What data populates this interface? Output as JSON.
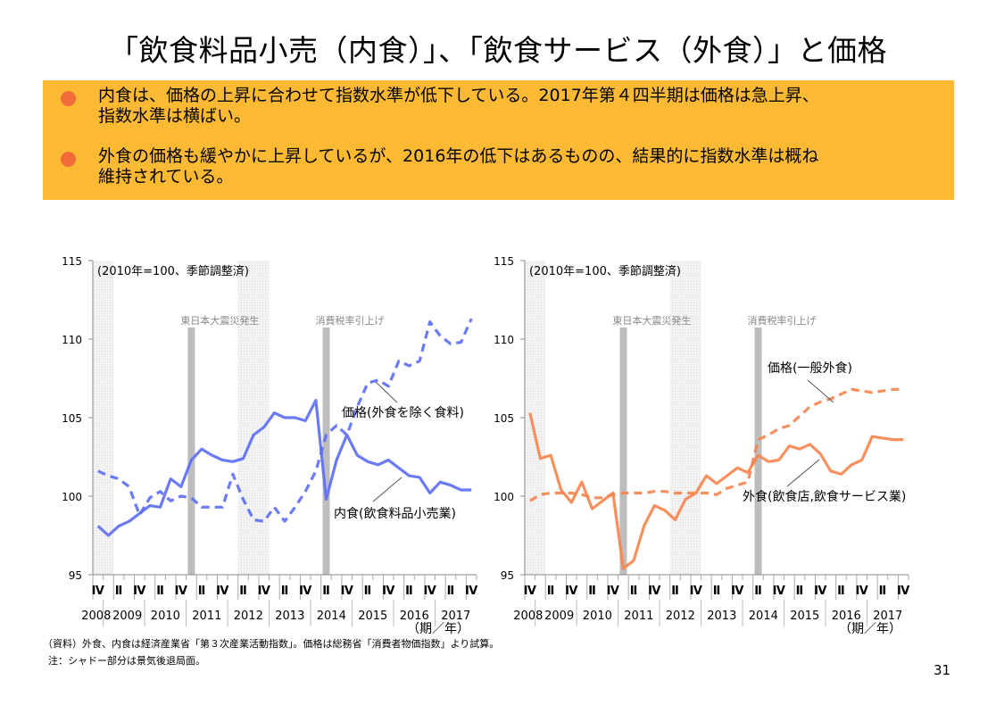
{
  "title": "「飲食料品小売（内食）」、「飲食サービス（外食）」と価格",
  "summary": {
    "bullets": [
      {
        "line1": "内食は、価格の上昇に合わせて指数水準が低下している。2017年第４四半期は価格は急上昇、",
        "line2": "指数水準は横ばい。"
      },
      {
        "line1": "外食の価格も緩やかに上昇しているが、2016年の低下はあるものの、結果的に指数水準は概ね",
        "line2": "維持されている。"
      }
    ]
  },
  "colors": {
    "summary_bg": "#FBB934",
    "bullet": "#F26B3A",
    "blue": "#5B6CF5",
    "orange": "#F7844C",
    "event_bar": "#BDBDBD",
    "shade": "#EDEDED"
  },
  "notes": {
    "source": "（資料）外食、内食は経済産業省「第３次産業活動指数」。価格は総務省「消費者物価指数」より試算。",
    "note": "注：シャドー部分は景気後退局面。"
  },
  "page_number": "31",
  "chart_data": [
    {
      "type": "line",
      "note_label": "(2010年=100、季節調整済)",
      "xlabel": "（期／年）",
      "ylim": [
        95,
        115
      ],
      "yticks": [
        95,
        100,
        105,
        110,
        115
      ],
      "x_quarter_labels": [
        "Ⅳ",
        "Ⅱ",
        "Ⅳ",
        "Ⅱ",
        "Ⅳ",
        "Ⅱ",
        "Ⅳ",
        "Ⅱ",
        "Ⅳ",
        "Ⅱ",
        "Ⅳ",
        "Ⅱ",
        "Ⅳ",
        "Ⅱ",
        "Ⅳ",
        "Ⅱ",
        "Ⅳ",
        "Ⅱ",
        "Ⅳ"
      ],
      "x_year_labels": [
        "2008",
        "2009",
        "2010",
        "2011",
        "2012",
        "2013",
        "2014",
        "2015",
        "2016",
        "2017"
      ],
      "x_start": "2008Q4",
      "x_end": "2017Q4",
      "recession_shading": [
        [
          "2008Q4",
          "2009Q1"
        ],
        [
          "2012Q2",
          "2012Q4"
        ]
      ],
      "events": [
        {
          "quarter": "2011Q1",
          "label": "東日本大震災発生"
        },
        {
          "quarter": "2014Q2",
          "label": "消費税率引上げ"
        }
      ],
      "series": [
        {
          "name": "内食(飲食料品小売業)",
          "style": "solid",
          "color": "#5B6CF5",
          "values": [
            98.1,
            97.5,
            98.1,
            98.4,
            98.9,
            99.4,
            99.3,
            101.1,
            100.6,
            102.3,
            103.0,
            102.6,
            102.3,
            102.2,
            102.4,
            103.9,
            104.4,
            105.3,
            105.0,
            105.0,
            104.8,
            106.1,
            99.8,
            102.3,
            103.9,
            102.6,
            102.2,
            102.0,
            102.3,
            101.8,
            101.3,
            101.2,
            100.2,
            100.9,
            100.7,
            100.4,
            100.4
          ]
        },
        {
          "name": "価格(外食を除く食料)",
          "style": "dashed",
          "color": "#5B6CF5",
          "values": [
            101.6,
            101.3,
            101.1,
            100.6,
            98.8,
            99.9,
            100.3,
            99.7,
            100.0,
            99.9,
            99.3,
            99.3,
            99.3,
            101.4,
            99.8,
            98.5,
            98.4,
            99.3,
            98.4,
            99.3,
            100.3,
            101.6,
            103.9,
            104.5,
            103.9,
            105.7,
            107.2,
            107.4,
            107.0,
            108.6,
            108.3,
            108.6,
            111.1,
            110.2,
            109.7,
            109.8,
            111.3
          ]
        }
      ]
    },
    {
      "type": "line",
      "note_label": "(2010年=100、季節調整済)",
      "xlabel": "（期／年）",
      "ylim": [
        95,
        115
      ],
      "yticks": [
        95,
        100,
        105,
        110,
        115
      ],
      "x_quarter_labels": [
        "Ⅳ",
        "Ⅱ",
        "Ⅳ",
        "Ⅱ",
        "Ⅳ",
        "Ⅱ",
        "Ⅳ",
        "Ⅱ",
        "Ⅳ",
        "Ⅱ",
        "Ⅳ",
        "Ⅱ",
        "Ⅳ",
        "Ⅱ",
        "Ⅳ",
        "Ⅱ",
        "Ⅳ",
        "Ⅱ",
        "Ⅳ"
      ],
      "x_year_labels": [
        "2008",
        "2009",
        "2010",
        "2011",
        "2012",
        "2013",
        "2014",
        "2015",
        "2016",
        "2017"
      ],
      "x_start": "2008Q4",
      "x_end": "2017Q4",
      "recession_shading": [
        [
          "2008Q4",
          "2009Q1"
        ],
        [
          "2012Q2",
          "2012Q4"
        ]
      ],
      "events": [
        {
          "quarter": "2011Q1",
          "label": "東日本大震災発生"
        },
        {
          "quarter": "2014Q2",
          "label": "消費税率引上げ"
        }
      ],
      "series": [
        {
          "name": "外食(飲食店,飲食サービス業)",
          "style": "solid",
          "color": "#F7844C",
          "values": [
            105.3,
            102.4,
            102.6,
            100.4,
            99.6,
            100.9,
            99.2,
            99.7,
            100.2,
            95.4,
            95.9,
            98.1,
            99.4,
            99.1,
            98.5,
            99.8,
            100.2,
            101.3,
            100.8,
            101.3,
            101.8,
            101.5,
            102.6,
            102.2,
            102.3,
            103.2,
            103.0,
            103.3,
            102.7,
            101.6,
            101.4,
            102.0,
            102.3,
            103.8,
            103.7,
            103.6,
            103.6
          ]
        },
        {
          "name": "価格(一般外食)",
          "style": "dashed",
          "color": "#F7844C",
          "values": [
            99.7,
            100.1,
            100.2,
            100.2,
            100.2,
            100.1,
            99.9,
            99.9,
            100.1,
            100.2,
            100.2,
            100.2,
            100.3,
            100.3,
            100.2,
            100.2,
            100.2,
            100.2,
            100.1,
            100.5,
            100.7,
            100.9,
            103.6,
            103.9,
            104.3,
            104.5,
            105.1,
            105.7,
            106.0,
            106.2,
            106.5,
            106.8,
            106.7,
            106.6,
            106.7,
            106.8,
            106.8
          ]
        }
      ]
    }
  ]
}
